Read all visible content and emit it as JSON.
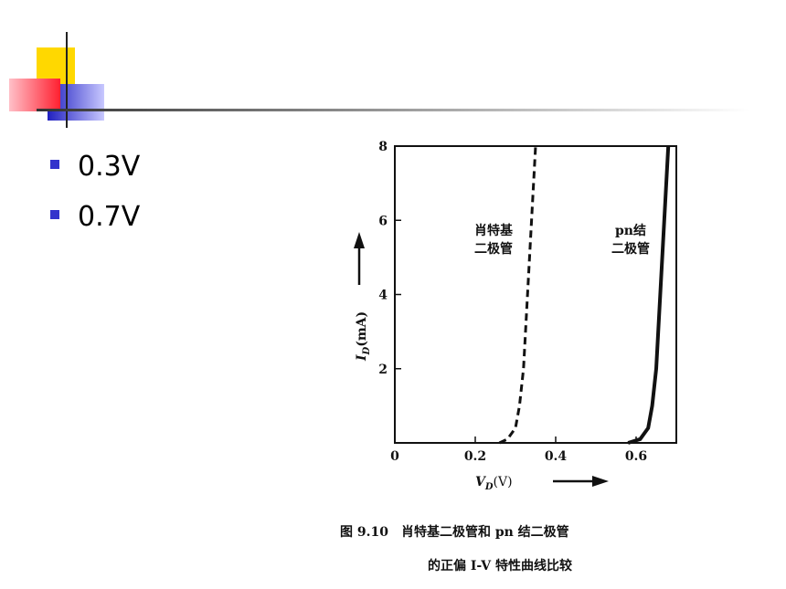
{
  "bullets": [
    "0.3V",
    "0.7V"
  ],
  "chart_data": {
    "type": "line",
    "xlabel": {
      "main": "V",
      "sub": "D",
      "unit": "(V)"
    },
    "ylabel": {
      "main": "I",
      "sub": "D",
      "unit": "(mA)"
    },
    "origin_label": "0",
    "xlim": [
      0,
      0.7
    ],
    "ylim": [
      0,
      8
    ],
    "xticks": [
      0.2,
      0.4,
      0.6
    ],
    "yticks": [
      2,
      4,
      6,
      8
    ],
    "series": [
      {
        "label_lines": [
          "肖特基",
          "二极管"
        ],
        "dashed": true,
        "color": "#111111",
        "x": [
          0.26,
          0.28,
          0.3,
          0.31,
          0.32,
          0.33,
          0.34,
          0.35
        ],
        "values": [
          0,
          0.1,
          0.4,
          1,
          2,
          4,
          6,
          8
        ]
      },
      {
        "label_lines": [
          "pn结",
          "二极管"
        ],
        "dashed": false,
        "color": "#111111",
        "x": [
          0.58,
          0.61,
          0.63,
          0.64,
          0.65,
          0.66,
          0.67,
          0.68
        ],
        "values": [
          0,
          0.1,
          0.4,
          1,
          2,
          4,
          6,
          8
        ]
      }
    ]
  },
  "caption": [
    "图 9.10　肖特基二极管和 pn 结二极管",
    "的正偏 I-V 特性曲线比较"
  ]
}
